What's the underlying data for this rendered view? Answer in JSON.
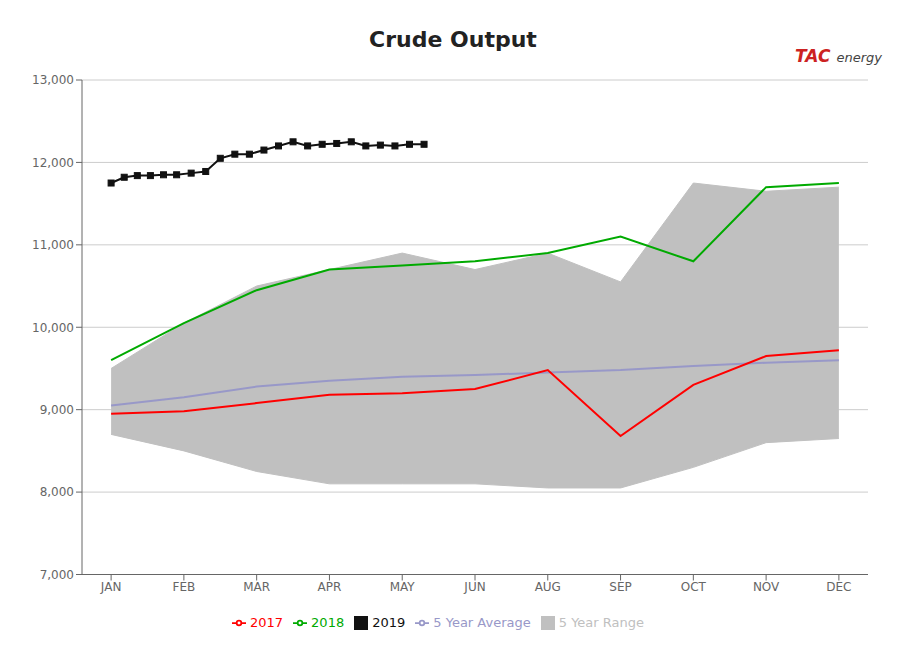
{
  "chart_data": {
    "type": "line",
    "title": "Crude Output",
    "annotations": [
      "TAC",
      "energy"
    ],
    "x": [
      0,
      1,
      2,
      3,
      4,
      5,
      6,
      7,
      8,
      9,
      10
    ],
    "xlim": [
      -0.4,
      10.4
    ],
    "xticks": [
      {
        "value": 0,
        "label": "JAN"
      },
      {
        "value": 1,
        "label": "FEB"
      },
      {
        "value": 2,
        "label": "MAR"
      },
      {
        "value": 3,
        "label": "APR"
      },
      {
        "value": 4,
        "label": "MAY"
      },
      {
        "value": 5,
        "label": "JUN"
      },
      {
        "value": 6,
        "label": "AUG"
      },
      {
        "value": 7,
        "label": "SEP"
      },
      {
        "value": 8,
        "label": "OCT"
      },
      {
        "value": 9,
        "label": "NOV"
      },
      {
        "value": 10,
        "label": "DEC"
      }
    ],
    "ylim": [
      7000,
      13000
    ],
    "yticks": [
      {
        "value": 7000,
        "label": "7,000"
      },
      {
        "value": 8000,
        "label": "8,000"
      },
      {
        "value": 9000,
        "label": "9,000"
      },
      {
        "value": 10000,
        "label": "10,000"
      },
      {
        "value": 11000,
        "label": "11,000"
      },
      {
        "value": 12000,
        "label": "12,000"
      },
      {
        "value": 13000,
        "label": "13,000"
      }
    ],
    "grid": true,
    "legend": "bottom",
    "series": [
      {
        "name": "5 Year Range",
        "type": "range",
        "color": "#c0c0c0",
        "low": [
          8700,
          8500,
          8250,
          8100,
          8100,
          8100,
          8050,
          8050,
          8300,
          8600,
          8650
        ],
        "high": [
          9500,
          10050,
          10500,
          10700,
          10900,
          10700,
          10900,
          10550,
          11750,
          11650,
          11700
        ]
      },
      {
        "name": "5 Year Average",
        "color": "#9898c8",
        "values": [
          9050,
          9150,
          9280,
          9350,
          9400,
          9420,
          9450,
          9480,
          9530,
          9570,
          9600
        ]
      },
      {
        "name": "2017",
        "color": "#ff0000",
        "values": [
          8950,
          8980,
          9080,
          9180,
          9200,
          9250,
          9480,
          8680,
          9300,
          9650,
          9720
        ]
      },
      {
        "name": "2018",
        "color": "#00aa00",
        "values": [
          9600,
          10050,
          10450,
          10700,
          10750,
          10800,
          10900,
          11100,
          10800,
          11700,
          11750
        ]
      },
      {
        "name": "2019",
        "color": "#111111",
        "marker": "square",
        "x": [
          0.0,
          0.18,
          0.36,
          0.54,
          0.72,
          0.9,
          1.1,
          1.3,
          1.5,
          1.7,
          1.9,
          2.1,
          2.3,
          2.5,
          2.7,
          2.9,
          3.1,
          3.3,
          3.5,
          3.7,
          3.9,
          4.1,
          4.3
        ],
        "values": [
          11750,
          11820,
          11840,
          11840,
          11850,
          11850,
          11870,
          11890,
          12050,
          12100,
          12100,
          12150,
          12200,
          12250,
          12200,
          12220,
          12230,
          12250,
          12200,
          12210,
          12200,
          12220,
          12220
        ]
      }
    ]
  }
}
